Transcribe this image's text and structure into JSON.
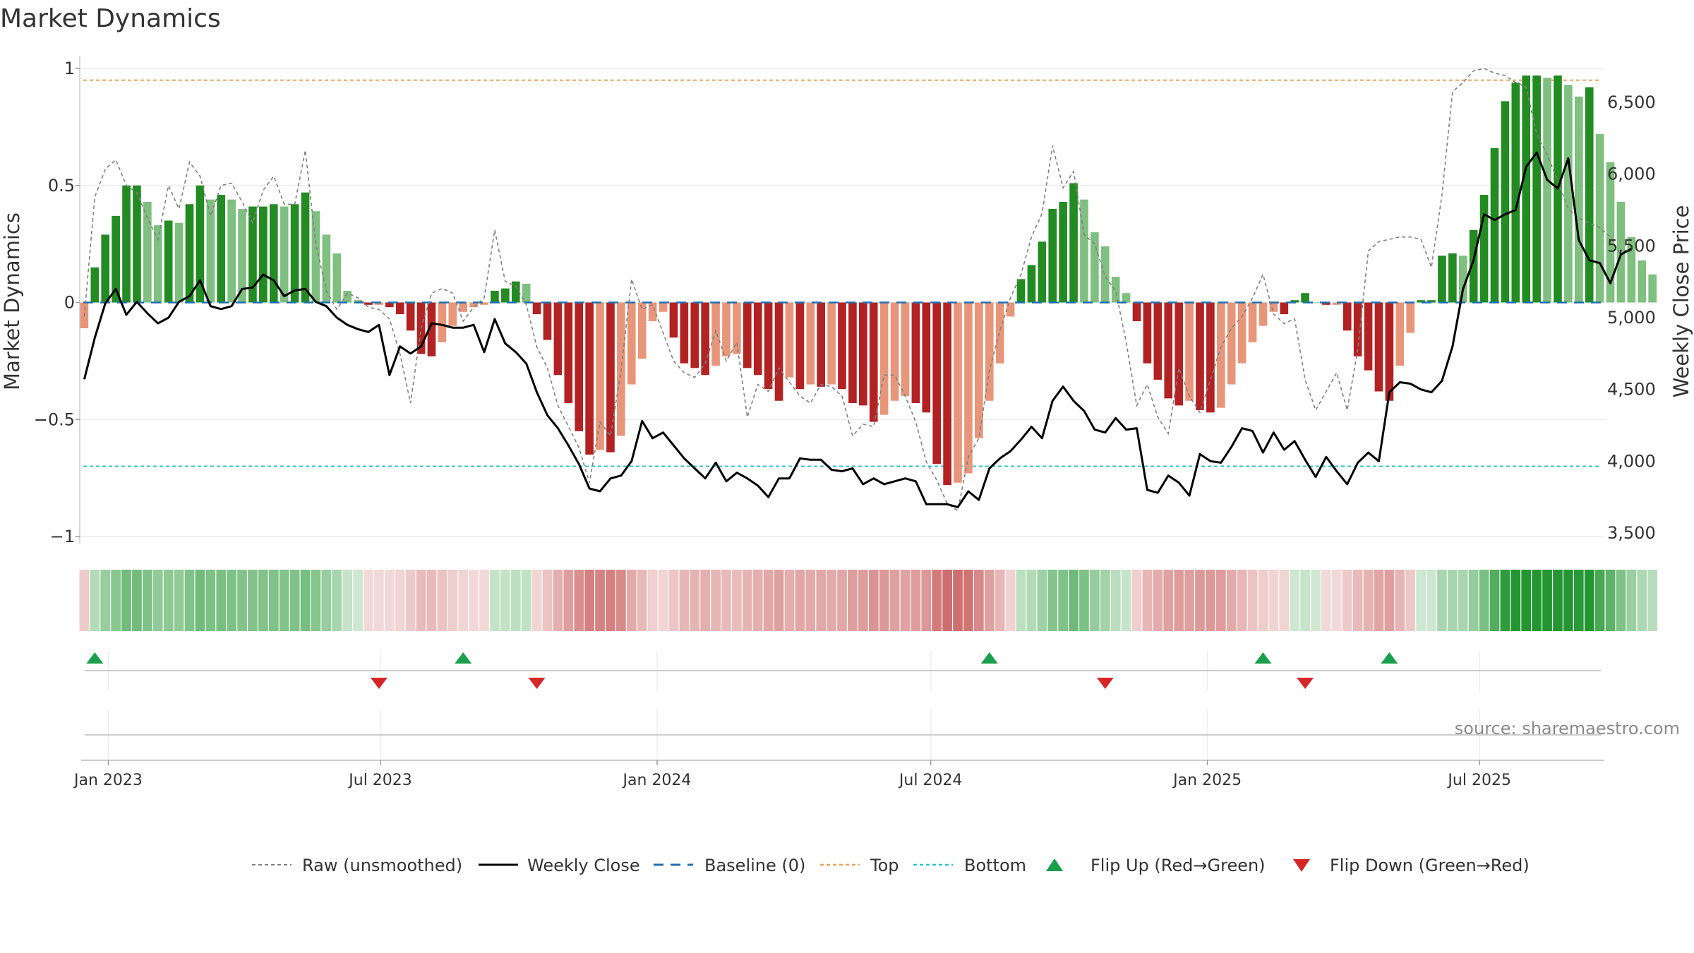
{
  "chart_data": {
    "type": "bar",
    "title": "Market Dynamics",
    "source": "source: sharemaestro.com",
    "y_left": {
      "label": "Market Dynamics",
      "range": [
        -1.05,
        1.05
      ],
      "ticks": [
        1,
        0.5,
        0,
        -0.5,
        -1
      ],
      "tick_labels": [
        "1",
        "0.5",
        "0",
        "−0.5",
        "−1"
      ]
    },
    "y_right": {
      "label": "Weekly Close Price",
      "range": [
        3450,
        6800
      ],
      "ticks": [
        6500,
        6000,
        5500,
        5000,
        4500,
        4000,
        3500
      ],
      "tick_labels": [
        "6,500",
        "6,000",
        "5,500",
        "5,000",
        "4,500",
        "4,000",
        "3,500"
      ]
    },
    "x_ticks": [
      {
        "date": "2023-01-01",
        "label": "Jan 2023"
      },
      {
        "date": "2023-07-01",
        "label": "Jul 2023"
      },
      {
        "date": "2024-01-01",
        "label": "Jan 2024"
      },
      {
        "date": "2024-07-01",
        "label": "Jul 2024"
      },
      {
        "date": "2025-01-01",
        "label": "Jan 2025"
      },
      {
        "date": "2025-07-01",
        "label": "Jul 2025"
      }
    ],
    "x_range": [
      "2022-12-13",
      "2025-09-22"
    ],
    "first_week": "2022-12-16",
    "reference_lines": {
      "top": 0.95,
      "bottom": -0.7,
      "baseline": 0
    },
    "colors": {
      "strong_green": "#228b22",
      "light_green": "#7fbf7f",
      "strong_red": "#b22222",
      "light_red": "#e8967a",
      "top_line": "#e8a25a",
      "bottom_line": "#2bc4d0",
      "baseline": "#1f6fb2",
      "raw_line": "#808080",
      "close_line": "#000000",
      "flip_up": "#1a9f4a",
      "flip_down": "#d62728"
    },
    "series": [
      {
        "name": "Market Dynamics",
        "values": [
          -0.11,
          0.15,
          0.29,
          0.37,
          0.5,
          0.5,
          0.43,
          0.33,
          0.35,
          0.34,
          0.42,
          0.5,
          0.44,
          0.46,
          0.44,
          0.4,
          0.41,
          0.41,
          0.42,
          0.41,
          0.42,
          0.47,
          0.39,
          0.29,
          0.21,
          0.05,
          0.01,
          -0.01,
          -0.01,
          -0.02,
          -0.05,
          -0.12,
          -0.22,
          -0.23,
          -0.17,
          -0.1,
          -0.04,
          -0.02,
          -0.01,
          0.05,
          0.06,
          0.09,
          0.08,
          -0.05,
          -0.16,
          -0.31,
          -0.43,
          -0.55,
          -0.65,
          -0.63,
          -0.64,
          -0.57,
          -0.35,
          -0.24,
          -0.08,
          -0.04,
          -0.15,
          -0.26,
          -0.28,
          -0.31,
          -0.27,
          -0.23,
          -0.22,
          -0.28,
          -0.31,
          -0.37,
          -0.42,
          -0.32,
          -0.37,
          -0.35,
          -0.36,
          -0.35,
          -0.37,
          -0.43,
          -0.44,
          -0.51,
          -0.48,
          -0.42,
          -0.4,
          -0.43,
          -0.47,
          -0.69,
          -0.78,
          -0.77,
          -0.73,
          -0.58,
          -0.42,
          -0.26,
          -0.06,
          0.1,
          0.16,
          0.26,
          0.4,
          0.43,
          0.51,
          0.44,
          0.3,
          0.24,
          0.11,
          0.04,
          -0.08,
          -0.26,
          -0.33,
          -0.41,
          -0.44,
          -0.42,
          -0.46,
          -0.47,
          -0.45,
          -0.35,
          -0.26,
          -0.17,
          -0.1,
          -0.04,
          -0.05,
          0.01,
          0.04,
          0.0,
          -0.01,
          -0.01,
          -0.12,
          -0.23,
          -0.29,
          -0.38,
          -0.42,
          -0.27,
          -0.13,
          0.01,
          0.01,
          0.2,
          0.21,
          0.2,
          0.31,
          0.46,
          0.66,
          0.86,
          0.94,
          0.97,
          0.97,
          0.96,
          0.97,
          0.93,
          0.88,
          0.92,
          0.72,
          0.6,
          0.43,
          0.28,
          0.18,
          0.12
        ]
      },
      {
        "name": "Raw (unsmoothed)",
        "values": [
          -0.06,
          0.45,
          0.57,
          0.61,
          0.5,
          0.47,
          0.36,
          0.27,
          0.5,
          0.4,
          0.6,
          0.54,
          0.37,
          0.5,
          0.51,
          0.43,
          0.34,
          0.48,
          0.54,
          0.42,
          0.42,
          0.65,
          0.25,
          0.05,
          -0.03,
          0.04,
          0.02,
          -0.02,
          -0.03,
          -0.07,
          -0.22,
          -0.43,
          -0.11,
          0.04,
          0.06,
          0.04,
          -0.08,
          -0.02,
          0.02,
          0.31,
          0.09,
          0.07,
          -0.01,
          -0.19,
          -0.28,
          -0.44,
          -0.53,
          -0.62,
          -0.77,
          -0.51,
          -0.57,
          -0.29,
          0.1,
          -0.03,
          -0.01,
          -0.13,
          -0.25,
          -0.3,
          -0.32,
          -0.26,
          -0.12,
          -0.25,
          -0.17,
          -0.49,
          -0.35,
          -0.38,
          -0.28,
          -0.34,
          -0.4,
          -0.43,
          -0.35,
          -0.36,
          -0.4,
          -0.57,
          -0.52,
          -0.53,
          -0.31,
          -0.31,
          -0.4,
          -0.51,
          -0.68,
          -0.76,
          -0.86,
          -0.89,
          -0.66,
          -0.58,
          -0.29,
          -0.12,
          0.02,
          0.12,
          0.28,
          0.38,
          0.67,
          0.49,
          0.56,
          0.29,
          0.25,
          0.11,
          0.05,
          -0.17,
          -0.44,
          -0.35,
          -0.49,
          -0.56,
          -0.28,
          -0.4,
          -0.47,
          -0.33,
          -0.19,
          -0.11,
          -0.06,
          0.02,
          0.12,
          -0.05,
          -0.09,
          -0.07,
          -0.33,
          -0.46,
          -0.38,
          -0.3,
          -0.46,
          -0.2,
          0.22,
          0.26,
          0.27,
          0.28,
          0.28,
          0.27,
          0.15,
          0.46,
          0.9,
          0.94,
          0.99,
          1.0,
          0.98,
          0.97,
          0.94,
          0.92,
          0.72,
          0.63,
          0.52,
          0.4,
          0.36,
          0.34,
          0.32,
          0.28,
          0.2
        ]
      },
      {
        "name": "Weekly Close",
        "values": [
          4570,
          4860,
          5100,
          5200,
          5020,
          5110,
          5030,
          4960,
          5000,
          5110,
          5150,
          5260,
          5080,
          5060,
          5080,
          5200,
          5210,
          5300,
          5260,
          5150,
          5190,
          5200,
          5110,
          5080,
          5000,
          4950,
          4920,
          4900,
          4950,
          4600,
          4800,
          4750,
          4800,
          4960,
          4950,
          4930,
          4930,
          4950,
          4760,
          4990,
          4820,
          4760,
          4680,
          4480,
          4320,
          4230,
          4110,
          3980,
          3810,
          3790,
          3880,
          3900,
          4000,
          4280,
          4160,
          4200,
          4110,
          4020,
          3950,
          3880,
          3990,
          3860,
          3920,
          3880,
          3830,
          3750,
          3880,
          3880,
          4020,
          4010,
          4010,
          3940,
          3930,
          3950,
          3840,
          3880,
          3840,
          3860,
          3880,
          3860,
          3700,
          3700,
          3700,
          3680,
          3790,
          3730,
          3950,
          4020,
          4070,
          4150,
          4240,
          4160,
          4420,
          4520,
          4420,
          4350,
          4220,
          4200,
          4300,
          4220,
          4230,
          3800,
          3780,
          3900,
          3850,
          3760,
          4050,
          4000,
          3990,
          4100,
          4230,
          4210,
          4060,
          4200,
          4080,
          4140,
          4010,
          3890,
          4030,
          3930,
          3840,
          3990,
          4060,
          4000,
          4480,
          4550,
          4540,
          4500,
          4480,
          4560,
          4800,
          5200,
          5400,
          5720,
          5680,
          5720,
          5750,
          6050,
          6150,
          5960,
          5900,
          6110,
          5540,
          5400,
          5380,
          5240,
          5440,
          5480
        ]
      }
    ],
    "flips": {
      "up": [
        "2022-12-23",
        "2023-08-25",
        "2024-08-09",
        "2025-02-07",
        "2025-05-02"
      ],
      "down": [
        "2023-06-30",
        "2023-10-13",
        "2024-10-25",
        "2025-03-07"
      ]
    },
    "legend": {
      "raw": "Raw (unsmoothed)",
      "close": "Weekly Close",
      "baseline": "Baseline (0)",
      "top": "Top",
      "bottom": "Bottom",
      "flip_up": "Flip Up (Red→Green)",
      "flip_down": "Flip Down (Green→Red)"
    }
  }
}
